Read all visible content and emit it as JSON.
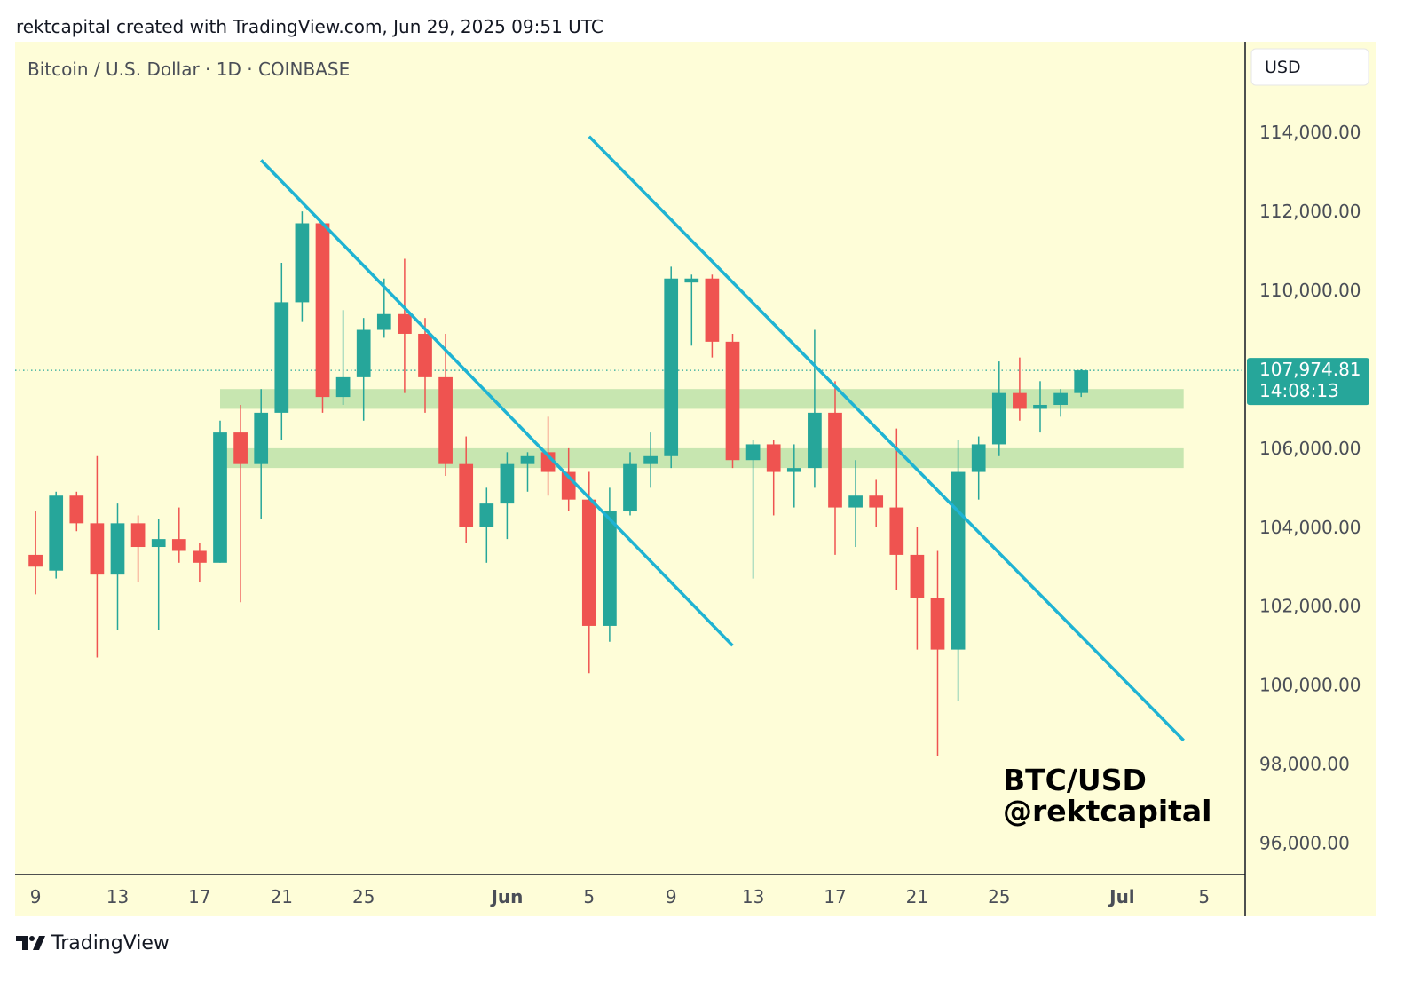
{
  "header": {
    "caption": "rektcapital created with TradingView.com, Jun 29, 2025 09:51 UTC"
  },
  "footer": {
    "brand": "TradingView"
  },
  "chart_data": {
    "type": "candlestick",
    "symbol_title": "Bitcoin / U.S. Dollar · 1D · COINBASE",
    "currency_button": "USD",
    "watermark": [
      "BTC/USD",
      "@rektcapital"
    ],
    "current_price_label": "107,974.81",
    "countdown_label": "14:08:13",
    "current_price": 107974.81,
    "ylim": [
      95200,
      116300
    ],
    "y_ticks": [
      96000,
      98000,
      100000,
      102000,
      104000,
      106000,
      108000,
      110000,
      112000,
      114000
    ],
    "y_tick_labels": [
      "96,000.00",
      "98,000.00",
      "100,000.00",
      "102,000.00",
      "104,000.00",
      "106,000.00",
      "108,000.00",
      "110,000.00",
      "112,000.00",
      "114,000.00"
    ],
    "x_labels": [
      {
        "date": "2025-05-09",
        "text": "9",
        "bold": false
      },
      {
        "date": "2025-05-13",
        "text": "13",
        "bold": false
      },
      {
        "date": "2025-05-17",
        "text": "17",
        "bold": false
      },
      {
        "date": "2025-05-21",
        "text": "21",
        "bold": false
      },
      {
        "date": "2025-05-25",
        "text": "25",
        "bold": false
      },
      {
        "date": "2025-06-01",
        "text": "Jun",
        "bold": true
      },
      {
        "date": "2025-06-05",
        "text": "5",
        "bold": false
      },
      {
        "date": "2025-06-09",
        "text": "9",
        "bold": false
      },
      {
        "date": "2025-06-13",
        "text": "13",
        "bold": false
      },
      {
        "date": "2025-06-17",
        "text": "17",
        "bold": false
      },
      {
        "date": "2025-06-21",
        "text": "21",
        "bold": false
      },
      {
        "date": "2025-06-25",
        "text": "25",
        "bold": false
      },
      {
        "date": "2025-07-01",
        "text": "Jul",
        "bold": true
      },
      {
        "date": "2025-07-05",
        "text": "5",
        "bold": false
      }
    ],
    "xlim": [
      "2025-05-08",
      "2025-07-07"
    ],
    "candles": [
      {
        "date": "2025-05-09",
        "o": 103300,
        "h": 104400,
        "l": 102300,
        "c": 103000
      },
      {
        "date": "2025-05-10",
        "o": 102900,
        "h": 104900,
        "l": 102700,
        "c": 104800
      },
      {
        "date": "2025-05-11",
        "o": 104800,
        "h": 104900,
        "l": 103900,
        "c": 104100
      },
      {
        "date": "2025-05-12",
        "o": 104100,
        "h": 105800,
        "l": 100700,
        "c": 102800
      },
      {
        "date": "2025-05-13",
        "o": 102800,
        "h": 104600,
        "l": 101400,
        "c": 104100
      },
      {
        "date": "2025-05-14",
        "o": 104100,
        "h": 104300,
        "l": 102600,
        "c": 103500
      },
      {
        "date": "2025-05-15",
        "o": 103500,
        "h": 104200,
        "l": 101400,
        "c": 103700
      },
      {
        "date": "2025-05-16",
        "o": 103700,
        "h": 104500,
        "l": 103100,
        "c": 103400
      },
      {
        "date": "2025-05-17",
        "o": 103400,
        "h": 103600,
        "l": 102600,
        "c": 103100
      },
      {
        "date": "2025-05-18",
        "o": 103100,
        "h": 106700,
        "l": 103100,
        "c": 106400
      },
      {
        "date": "2025-05-19",
        "o": 106400,
        "h": 107100,
        "l": 102100,
        "c": 105600
      },
      {
        "date": "2025-05-20",
        "o": 105600,
        "h": 107500,
        "l": 104200,
        "c": 106900
      },
      {
        "date": "2025-05-21",
        "o": 106900,
        "h": 110700,
        "l": 106200,
        "c": 109700
      },
      {
        "date": "2025-05-22",
        "o": 109700,
        "h": 112000,
        "l": 109200,
        "c": 111700
      },
      {
        "date": "2025-05-23",
        "o": 111700,
        "h": 111700,
        "l": 106900,
        "c": 107300
      },
      {
        "date": "2025-05-24",
        "o": 107300,
        "h": 109500,
        "l": 107100,
        "c": 107800
      },
      {
        "date": "2025-05-25",
        "o": 107800,
        "h": 109300,
        "l": 106700,
        "c": 109000
      },
      {
        "date": "2025-05-26",
        "o": 109000,
        "h": 110300,
        "l": 108800,
        "c": 109400
      },
      {
        "date": "2025-05-27",
        "o": 109400,
        "h": 110800,
        "l": 107400,
        "c": 108900
      },
      {
        "date": "2025-05-28",
        "o": 108900,
        "h": 109300,
        "l": 106900,
        "c": 107800
      },
      {
        "date": "2025-05-29",
        "o": 107800,
        "h": 108900,
        "l": 105300,
        "c": 105600
      },
      {
        "date": "2025-05-30",
        "o": 105600,
        "h": 106300,
        "l": 103600,
        "c": 104000
      },
      {
        "date": "2025-05-31",
        "o": 104000,
        "h": 105000,
        "l": 103100,
        "c": 104600
      },
      {
        "date": "2025-06-01",
        "o": 104600,
        "h": 105900,
        "l": 103700,
        "c": 105600
      },
      {
        "date": "2025-06-02",
        "o": 105600,
        "h": 105900,
        "l": 104900,
        "c": 105800
      },
      {
        "date": "2025-06-03",
        "o": 105900,
        "h": 106800,
        "l": 104800,
        "c": 105400
      },
      {
        "date": "2025-06-04",
        "o": 105400,
        "h": 106000,
        "l": 104400,
        "c": 104700
      },
      {
        "date": "2025-06-05",
        "o": 104700,
        "h": 105400,
        "l": 100300,
        "c": 101500
      },
      {
        "date": "2025-06-06",
        "o": 101500,
        "h": 105000,
        "l": 101100,
        "c": 104400
      },
      {
        "date": "2025-06-07",
        "o": 104400,
        "h": 105900,
        "l": 104300,
        "c": 105600
      },
      {
        "date": "2025-06-08",
        "o": 105600,
        "h": 106400,
        "l": 105000,
        "c": 105800
      },
      {
        "date": "2025-06-09",
        "o": 105800,
        "h": 110600,
        "l": 105500,
        "c": 110300
      },
      {
        "date": "2025-06-10",
        "o": 110200,
        "h": 110400,
        "l": 108600,
        "c": 110300
      },
      {
        "date": "2025-06-11",
        "o": 110300,
        "h": 110400,
        "l": 108300,
        "c": 108700
      },
      {
        "date": "2025-06-12",
        "o": 108700,
        "h": 108900,
        "l": 105500,
        "c": 105700
      },
      {
        "date": "2025-06-13",
        "o": 105700,
        "h": 106200,
        "l": 102700,
        "c": 106100
      },
      {
        "date": "2025-06-14",
        "o": 106100,
        "h": 106200,
        "l": 104300,
        "c": 105400
      },
      {
        "date": "2025-06-15",
        "o": 105400,
        "h": 106100,
        "l": 104500,
        "c": 105500
      },
      {
        "date": "2025-06-16",
        "o": 105500,
        "h": 109000,
        "l": 105000,
        "c": 106900
      },
      {
        "date": "2025-06-17",
        "o": 106900,
        "h": 107700,
        "l": 103300,
        "c": 104500
      },
      {
        "date": "2025-06-18",
        "o": 104500,
        "h": 105700,
        "l": 103500,
        "c": 104800
      },
      {
        "date": "2025-06-19",
        "o": 104800,
        "h": 105200,
        "l": 104000,
        "c": 104500
      },
      {
        "date": "2025-06-20",
        "o": 104500,
        "h": 106500,
        "l": 102400,
        "c": 103300
      },
      {
        "date": "2025-06-21",
        "o": 103300,
        "h": 104000,
        "l": 100900,
        "c": 102200
      },
      {
        "date": "2025-06-22",
        "o": 102200,
        "h": 103400,
        "l": 98200,
        "c": 100900
      },
      {
        "date": "2025-06-23",
        "o": 100900,
        "h": 106200,
        "l": 99600,
        "c": 105400
      },
      {
        "date": "2025-06-24",
        "o": 105400,
        "h": 106300,
        "l": 104700,
        "c": 106100
      },
      {
        "date": "2025-06-25",
        "o": 106100,
        "h": 108200,
        "l": 105800,
        "c": 107400
      },
      {
        "date": "2025-06-26",
        "o": 107400,
        "h": 108300,
        "l": 106700,
        "c": 107000
      },
      {
        "date": "2025-06-27",
        "o": 107000,
        "h": 107700,
        "l": 106400,
        "c": 107100
      },
      {
        "date": "2025-06-28",
        "o": 107100,
        "h": 107500,
        "l": 106800,
        "c": 107400
      },
      {
        "date": "2025-06-29",
        "o": 107400,
        "h": 108000,
        "l": 107300,
        "c": 107975
      }
    ],
    "support_zones": [
      {
        "from": 107000,
        "to": 107500,
        "start": "2025-05-18",
        "end": "2025-07-04"
      },
      {
        "from": 105500,
        "to": 106000,
        "start": "2025-05-18",
        "end": "2025-07-04"
      }
    ],
    "trendlines": [
      {
        "from": {
          "date": "2025-05-20",
          "price": 113300
        },
        "to": {
          "date": "2025-06-12",
          "price": 101000
        }
      },
      {
        "from": {
          "date": "2025-06-05",
          "price": 113900
        },
        "to": {
          "date": "2025-07-04",
          "price": 98600
        }
      }
    ],
    "colors": {
      "background": "#fefdd8",
      "up": "#26a69a",
      "down": "#ef5350",
      "trendline": "#1fb3d3",
      "zone": "#c7e6b0",
      "price_line": "#26a69a",
      "axis_text": "#4a4e57"
    }
  }
}
